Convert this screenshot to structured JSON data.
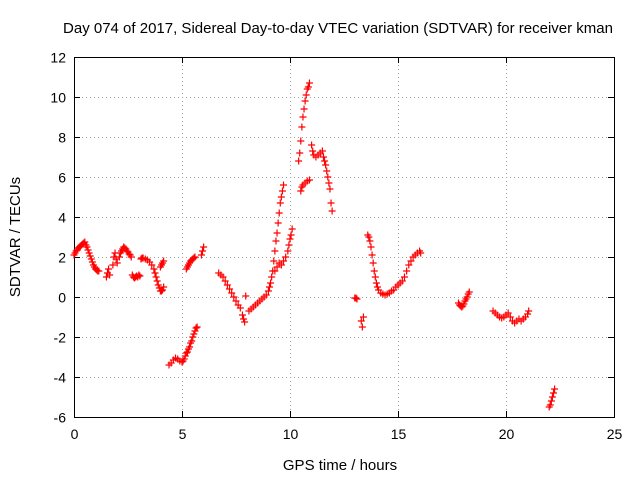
{
  "chart_data": {
    "type": "scatter",
    "title": "Day 074 of 2017, Sidereal Day-to-day VTEC variation (SDTVAR) for receiver kman",
    "xlabel": "GPS time / hours",
    "ylabel": "SDTVAR / TECUs",
    "xlim": [
      0,
      25
    ],
    "ylim": [
      -6,
      12
    ],
    "xticks": [
      0,
      5,
      10,
      15,
      20,
      25
    ],
    "yticks": [
      -6,
      -4,
      -2,
      0,
      2,
      4,
      6,
      8,
      10,
      12
    ],
    "grid": true,
    "marker": "plus",
    "color": "#ff0000",
    "series": [
      {
        "name": "SDTVAR",
        "values": [
          [
            0.0,
            2.1
          ],
          [
            0.05,
            2.2
          ],
          [
            0.1,
            2.3
          ],
          [
            0.15,
            2.35
          ],
          [
            0.2,
            2.45
          ],
          [
            0.25,
            2.5
          ],
          [
            0.3,
            2.55
          ],
          [
            0.35,
            2.6
          ],
          [
            0.4,
            2.65
          ],
          [
            0.45,
            2.7
          ],
          [
            0.5,
            2.75
          ],
          [
            0.55,
            2.6
          ],
          [
            0.6,
            2.5
          ],
          [
            0.65,
            2.35
          ],
          [
            0.7,
            2.2
          ],
          [
            0.75,
            2.05
          ],
          [
            0.8,
            1.9
          ],
          [
            0.85,
            1.75
          ],
          [
            0.9,
            1.6
          ],
          [
            0.95,
            1.5
          ],
          [
            1.0,
            1.4
          ],
          [
            1.05,
            1.35
          ],
          [
            1.1,
            1.3
          ],
          [
            1.15,
            1.3
          ],
          [
            1.5,
            1.0
          ],
          [
            1.55,
            1.2
          ],
          [
            1.6,
            1.4
          ],
          [
            1.65,
            1.1
          ],
          [
            1.8,
            1.6
          ],
          [
            1.85,
            2.0
          ],
          [
            1.9,
            2.2
          ],
          [
            1.95,
            1.9
          ],
          [
            2.0,
            1.7
          ],
          [
            2.1,
            2.0
          ],
          [
            2.15,
            2.2
          ],
          [
            2.2,
            2.3
          ],
          [
            2.25,
            2.4
          ],
          [
            2.3,
            2.5
          ],
          [
            2.35,
            2.45
          ],
          [
            2.4,
            2.4
          ],
          [
            2.45,
            2.3
          ],
          [
            2.5,
            2.25
          ],
          [
            2.55,
            2.15
          ],
          [
            2.6,
            2.1
          ],
          [
            2.65,
            2.0
          ],
          [
            2.7,
            1.1
          ],
          [
            2.75,
            1.0
          ],
          [
            2.8,
            0.95
          ],
          [
            2.85,
            1.0
          ],
          [
            2.9,
            1.05
          ],
          [
            2.95,
            1.0
          ],
          [
            3.0,
            1.1
          ],
          [
            3.05,
            1.05
          ],
          [
            3.1,
            1.9
          ],
          [
            3.15,
            1.95
          ],
          [
            3.2,
            1.95
          ],
          [
            3.3,
            1.9
          ],
          [
            3.4,
            1.85
          ],
          [
            3.5,
            1.75
          ],
          [
            3.6,
            1.6
          ],
          [
            3.7,
            1.4
          ],
          [
            3.75,
            1.2
          ],
          [
            3.8,
            1.0
          ],
          [
            3.85,
            0.8
          ],
          [
            3.9,
            0.6
          ],
          [
            3.95,
            0.45
          ],
          [
            4.0,
            0.3
          ],
          [
            4.05,
            0.3
          ],
          [
            4.1,
            0.35
          ],
          [
            4.15,
            0.5
          ],
          [
            4.0,
            1.5
          ],
          [
            4.05,
            1.6
          ],
          [
            4.1,
            1.7
          ],
          [
            4.15,
            1.8
          ],
          [
            4.4,
            -3.4
          ],
          [
            4.5,
            -3.3
          ],
          [
            4.6,
            -3.15
          ],
          [
            4.7,
            -3.05
          ],
          [
            4.8,
            -3.1
          ],
          [
            4.9,
            -3.2
          ],
          [
            5.0,
            -3.25
          ],
          [
            5.05,
            -3.2
          ],
          [
            5.1,
            -3.1
          ],
          [
            5.15,
            -2.95
          ],
          [
            5.2,
            -2.8
          ],
          [
            5.25,
            -2.75
          ],
          [
            5.3,
            -2.6
          ],
          [
            5.35,
            -2.5
          ],
          [
            5.4,
            -2.3
          ],
          [
            5.45,
            -2.2
          ],
          [
            5.5,
            -2.0
          ],
          [
            5.55,
            -1.85
          ],
          [
            5.6,
            -1.7
          ],
          [
            5.65,
            -1.55
          ],
          [
            5.7,
            -1.5
          ],
          [
            5.2,
            1.4
          ],
          [
            5.25,
            1.5
          ],
          [
            5.3,
            1.6
          ],
          [
            5.35,
            1.7
          ],
          [
            5.4,
            1.8
          ],
          [
            5.45,
            1.85
          ],
          [
            5.5,
            1.9
          ],
          [
            5.55,
            1.95
          ],
          [
            5.6,
            2.0
          ],
          [
            5.9,
            2.1
          ],
          [
            5.95,
            2.3
          ],
          [
            6.0,
            2.5
          ],
          [
            6.7,
            1.2
          ],
          [
            6.8,
            1.1
          ],
          [
            6.9,
            1.0
          ],
          [
            7.0,
            0.8
          ],
          [
            7.1,
            0.6
          ],
          [
            7.2,
            0.4
          ],
          [
            7.3,
            0.2
          ],
          [
            7.4,
            0.0
          ],
          [
            7.5,
            -0.2
          ],
          [
            7.6,
            -0.4
          ],
          [
            7.7,
            -0.55
          ],
          [
            7.8,
            -0.9
          ],
          [
            7.85,
            -1.1
          ],
          [
            7.9,
            -1.25
          ],
          [
            7.95,
            0.05
          ],
          [
            8.1,
            -0.7
          ],
          [
            8.2,
            -0.6
          ],
          [
            8.3,
            -0.5
          ],
          [
            8.4,
            -0.4
          ],
          [
            8.5,
            -0.3
          ],
          [
            8.6,
            -0.2
          ],
          [
            8.7,
            -0.1
          ],
          [
            8.8,
            0.0
          ],
          [
            8.9,
            0.1
          ],
          [
            9.0,
            0.3
          ],
          [
            9.05,
            0.5
          ],
          [
            9.1,
            0.7
          ],
          [
            9.15,
            1.0
          ],
          [
            9.2,
            1.3
          ],
          [
            9.25,
            1.8
          ],
          [
            9.3,
            2.3
          ],
          [
            9.35,
            2.8
          ],
          [
            9.4,
            3.2
          ],
          [
            9.45,
            3.7
          ],
          [
            9.5,
            4.2
          ],
          [
            9.55,
            4.7
          ],
          [
            9.6,
            5.0
          ],
          [
            9.65,
            5.3
          ],
          [
            9.7,
            5.6
          ],
          [
            9.3,
            1.3
          ],
          [
            9.4,
            1.5
          ],
          [
            9.5,
            1.7
          ],
          [
            9.6,
            1.6
          ],
          [
            9.7,
            1.8
          ],
          [
            9.8,
            2.0
          ],
          [
            9.9,
            2.3
          ],
          [
            9.95,
            2.6
          ],
          [
            10.0,
            2.9
          ],
          [
            10.05,
            3.1
          ],
          [
            10.1,
            3.4
          ],
          [
            10.4,
            6.8
          ],
          [
            10.45,
            7.2
          ],
          [
            10.5,
            7.8
          ],
          [
            10.55,
            8.5
          ],
          [
            10.6,
            9.0
          ],
          [
            10.65,
            9.4
          ],
          [
            10.7,
            9.8
          ],
          [
            10.75,
            10.1
          ],
          [
            10.8,
            10.4
          ],
          [
            10.85,
            10.5
          ],
          [
            10.9,
            10.7
          ],
          [
            10.5,
            5.3
          ],
          [
            10.55,
            5.5
          ],
          [
            10.6,
            5.6
          ],
          [
            10.7,
            5.7
          ],
          [
            10.8,
            5.8
          ],
          [
            10.9,
            5.85
          ],
          [
            11.0,
            7.6
          ],
          [
            11.05,
            7.3
          ],
          [
            11.1,
            7.1
          ],
          [
            11.2,
            7.0
          ],
          [
            11.3,
            7.1
          ],
          [
            11.4,
            7.2
          ],
          [
            11.5,
            7.3
          ],
          [
            11.55,
            7.0
          ],
          [
            11.6,
            6.8
          ],
          [
            11.65,
            6.6
          ],
          [
            11.7,
            6.3
          ],
          [
            11.75,
            6.0
          ],
          [
            11.8,
            5.7
          ],
          [
            11.85,
            5.4
          ],
          [
            11.9,
            4.7
          ],
          [
            11.95,
            4.3
          ],
          [
            13.0,
            -0.05
          ],
          [
            13.05,
            -0.05
          ],
          [
            13.1,
            -0.1
          ],
          [
            13.3,
            -1.2
          ],
          [
            13.35,
            -1.5
          ],
          [
            13.4,
            -1.0
          ],
          [
            13.6,
            3.1
          ],
          [
            13.65,
            3.0
          ],
          [
            13.7,
            2.8
          ],
          [
            13.75,
            2.5
          ],
          [
            13.8,
            2.1
          ],
          [
            13.85,
            1.7
          ],
          [
            13.9,
            1.3
          ],
          [
            13.95,
            1.0
          ],
          [
            14.0,
            0.7
          ],
          [
            14.05,
            0.5
          ],
          [
            14.1,
            0.35
          ],
          [
            14.2,
            0.2
          ],
          [
            14.3,
            0.15
          ],
          [
            14.4,
            0.1
          ],
          [
            14.5,
            0.15
          ],
          [
            14.6,
            0.2
          ],
          [
            14.7,
            0.3
          ],
          [
            14.8,
            0.35
          ],
          [
            14.9,
            0.5
          ],
          [
            15.0,
            0.6
          ],
          [
            15.1,
            0.7
          ],
          [
            15.2,
            0.8
          ],
          [
            15.3,
            1.0
          ],
          [
            15.4,
            1.3
          ],
          [
            15.5,
            1.6
          ],
          [
            15.6,
            1.8
          ],
          [
            15.7,
            2.0
          ],
          [
            15.8,
            2.1
          ],
          [
            15.9,
            2.2
          ],
          [
            16.0,
            2.3
          ],
          [
            16.05,
            2.2
          ],
          [
            17.8,
            -0.3
          ],
          [
            17.85,
            -0.4
          ],
          [
            17.9,
            -0.45
          ],
          [
            17.95,
            -0.5
          ],
          [
            18.0,
            -0.45
          ],
          [
            18.05,
            -0.35
          ],
          [
            18.1,
            -0.2
          ],
          [
            18.15,
            -0.1
          ],
          [
            18.2,
            0.0
          ],
          [
            18.25,
            0.15
          ],
          [
            18.3,
            0.25
          ],
          [
            19.4,
            -0.7
          ],
          [
            19.5,
            -0.8
          ],
          [
            19.6,
            -0.9
          ],
          [
            19.7,
            -1.0
          ],
          [
            19.8,
            -1.05
          ],
          [
            19.9,
            -1.0
          ],
          [
            20.0,
            -0.9
          ],
          [
            20.1,
            -0.8
          ],
          [
            20.2,
            -1.0
          ],
          [
            20.3,
            -1.2
          ],
          [
            20.4,
            -1.3
          ],
          [
            20.5,
            -1.2
          ],
          [
            20.6,
            -1.1
          ],
          [
            20.7,
            -1.2
          ],
          [
            20.8,
            -1.1
          ],
          [
            20.9,
            -1.0
          ],
          [
            21.0,
            -0.85
          ],
          [
            21.05,
            -0.7
          ],
          [
            22.0,
            -5.5
          ],
          [
            22.05,
            -5.4
          ],
          [
            22.1,
            -5.2
          ],
          [
            22.15,
            -5.0
          ],
          [
            22.2,
            -4.8
          ],
          [
            22.25,
            -4.6
          ]
        ]
      }
    ]
  }
}
